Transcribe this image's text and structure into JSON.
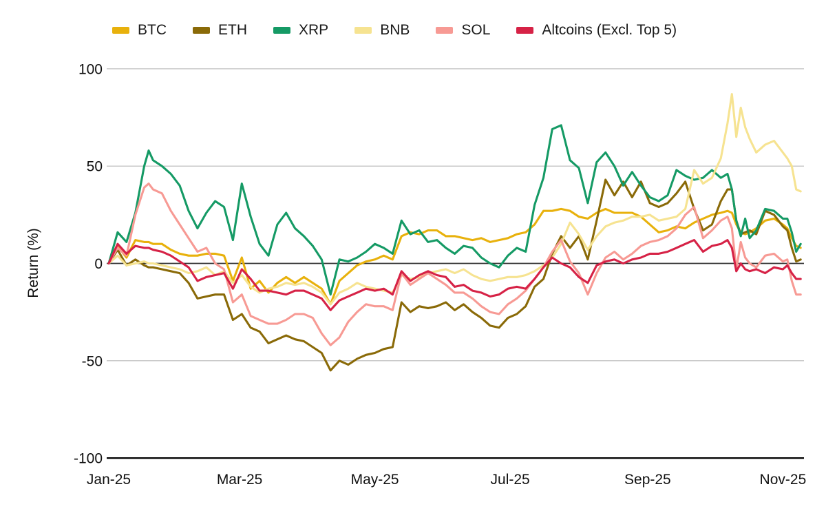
{
  "chart_data": {
    "type": "line",
    "title": "",
    "xlabel": "",
    "ylabel": "Return (%)",
    "ylim": [
      -100,
      100
    ],
    "yticks": [
      100,
      50,
      0,
      -50,
      -100
    ],
    "grid": "horizontal",
    "legend_position": "top",
    "xticks": [
      {
        "day": 0,
        "label": "Jan-25"
      },
      {
        "day": 59,
        "label": "Mar-25"
      },
      {
        "day": 120,
        "label": "May-25"
      },
      {
        "day": 181,
        "label": "Jul-25"
      },
      {
        "day": 243,
        "label": "Sep-25"
      },
      {
        "day": 304,
        "label": "Nov-25"
      }
    ],
    "x_day_range": [
      0,
      312
    ],
    "x_days": [
      0,
      4,
      8,
      12,
      16,
      18,
      20,
      24,
      28,
      32,
      36,
      40,
      44,
      48,
      52,
      56,
      60,
      64,
      68,
      72,
      76,
      80,
      84,
      88,
      92,
      96,
      100,
      104,
      108,
      112,
      116,
      120,
      124,
      128,
      132,
      136,
      140,
      144,
      148,
      152,
      156,
      160,
      164,
      168,
      172,
      176,
      180,
      184,
      188,
      192,
      196,
      200,
      204,
      208,
      212,
      216,
      220,
      224,
      228,
      232,
      236,
      240,
      244,
      248,
      252,
      256,
      260,
      264,
      268,
      272,
      276,
      279,
      281,
      283,
      285,
      287,
      289,
      292,
      296,
      300,
      304,
      306,
      308,
      310,
      312
    ],
    "series": [
      {
        "name": "BTC",
        "color": "#E8B10C",
        "values": [
          0,
          9,
          3,
          12,
          11,
          11,
          10,
          10,
          7,
          5,
          4,
          4,
          5,
          5,
          4,
          -9,
          3,
          -13,
          -9,
          -15,
          -10,
          -7,
          -10,
          -7,
          -10,
          -13,
          -21,
          -9,
          -5,
          -1,
          1,
          2,
          4,
          2,
          14,
          16,
          15,
          17,
          17,
          14,
          14,
          13,
          12,
          13,
          11,
          12,
          13,
          15,
          16,
          20,
          27,
          27,
          28,
          27,
          24,
          23,
          26,
          28,
          26,
          26,
          26,
          24,
          20,
          16,
          17,
          19,
          18,
          21,
          23,
          25,
          26,
          27,
          26,
          20,
          16,
          15,
          16,
          18,
          22,
          23,
          20,
          18,
          13,
          9,
          8
        ]
      },
      {
        "name": "ETH",
        "color": "#8A6A08",
        "values": [
          0,
          7,
          -1,
          2,
          -1,
          -2,
          -2,
          -3,
          -4,
          -5,
          -10,
          -18,
          -17,
          -16,
          -16,
          -29,
          -26,
          -33,
          -35,
          -41,
          -39,
          -37,
          -39,
          -40,
          -43,
          -46,
          -55,
          -50,
          -52,
          -49,
          -47,
          -46,
          -44,
          -43,
          -20,
          -25,
          -22,
          -23,
          -22,
          -20,
          -24,
          -21,
          -25,
          -28,
          -32,
          -33,
          -28,
          -26,
          -22,
          -12,
          -8,
          5,
          14,
          8,
          14,
          2,
          22,
          43,
          35,
          42,
          34,
          42,
          31,
          29,
          31,
          36,
          42,
          28,
          17,
          20,
          32,
          38,
          38,
          22,
          15,
          16,
          17,
          15,
          27,
          25,
          19,
          17,
          8,
          1,
          2
        ]
      },
      {
        "name": "XRP",
        "color": "#159A65",
        "values": [
          0,
          16,
          11,
          26,
          50,
          58,
          53,
          50,
          46,
          40,
          27,
          18,
          26,
          32,
          29,
          12,
          41,
          24,
          10,
          4,
          20,
          26,
          18,
          14,
          9,
          2,
          -16,
          2,
          1,
          3,
          6,
          10,
          8,
          5,
          22,
          15,
          17,
          11,
          12,
          8,
          5,
          9,
          8,
          3,
          0,
          -2,
          4,
          8,
          6,
          30,
          44,
          69,
          71,
          53,
          49,
          31,
          52,
          57,
          50,
          40,
          47,
          40,
          34,
          32,
          35,
          48,
          45,
          43,
          44,
          48,
          44,
          46,
          38,
          22,
          14,
          23,
          13,
          17,
          28,
          27,
          23,
          23,
          16,
          6,
          10
        ]
      },
      {
        "name": "BNB",
        "color": "#F6E391",
        "values": [
          0,
          4,
          -1,
          0,
          1,
          0,
          0,
          -1,
          -2,
          -3,
          -5,
          -4,
          -2,
          -6,
          -4,
          -10,
          -6,
          -12,
          -15,
          -13,
          -12,
          -10,
          -11,
          -10,
          -12,
          -15,
          -21,
          -15,
          -13,
          -10,
          -12,
          -13,
          -14,
          -15,
          -6,
          -8,
          -7,
          -5,
          -4,
          -3,
          -5,
          -3,
          -6,
          -8,
          -9,
          -8,
          -7,
          -7,
          -6,
          -4,
          -1,
          3,
          10,
          21,
          15,
          7,
          14,
          19,
          21,
          22,
          24,
          24,
          25,
          22,
          23,
          24,
          28,
          48,
          41,
          44,
          54,
          72,
          87,
          65,
          80,
          70,
          64,
          57,
          61,
          63,
          57,
          54,
          50,
          38,
          37
        ]
      },
      {
        "name": "SOL",
        "color": "#F79A94",
        "values": [
          0,
          8,
          4,
          25,
          39,
          41,
          38,
          36,
          27,
          20,
          13,
          6,
          8,
          0,
          -3,
          -20,
          -16,
          -27,
          -29,
          -31,
          -31,
          -29,
          -26,
          -26,
          -28,
          -36,
          -42,
          -38,
          -30,
          -25,
          -21,
          -22,
          -22,
          -24,
          -5,
          -11,
          -8,
          -5,
          -8,
          -11,
          -15,
          -15,
          -18,
          -22,
          -25,
          -26,
          -21,
          -18,
          -14,
          -8,
          -2,
          6,
          12,
          1,
          -5,
          -16,
          -5,
          3,
          6,
          2,
          5,
          9,
          11,
          12,
          14,
          18,
          25,
          29,
          13,
          17,
          22,
          24,
          18,
          -3,
          11,
          3,
          0,
          -2,
          4,
          5,
          1,
          2,
          -9,
          -16,
          -16
        ]
      },
      {
        "name": "Altcoins (Excl. Top 5)",
        "color": "#D62246",
        "values": [
          0,
          10,
          5,
          9,
          8,
          8,
          7,
          6,
          4,
          1,
          -2,
          -9,
          -7,
          -6,
          -5,
          -13,
          -3,
          -8,
          -14,
          -14,
          -15,
          -16,
          -14,
          -14,
          -16,
          -18,
          -24,
          -19,
          -17,
          -15,
          -13,
          -14,
          -13,
          -16,
          -4,
          -9,
          -6,
          -4,
          -6,
          -7,
          -12,
          -11,
          -14,
          -15,
          -17,
          -16,
          -13,
          -12,
          -13,
          -8,
          -2,
          3,
          0,
          -2,
          -7,
          -10,
          -1,
          1,
          2,
          0,
          2,
          3,
          5,
          5,
          6,
          8,
          10,
          12,
          6,
          9,
          10,
          12,
          8,
          -4,
          0,
          -3,
          -4,
          -3,
          -5,
          -2,
          -3,
          -1,
          -5,
          -8,
          -8
        ]
      }
    ],
    "colors": {
      "grid_line": "#c9c9c9",
      "zero_line": "#333333",
      "axis_line": "#000000",
      "tick_text": "#111111"
    }
  }
}
